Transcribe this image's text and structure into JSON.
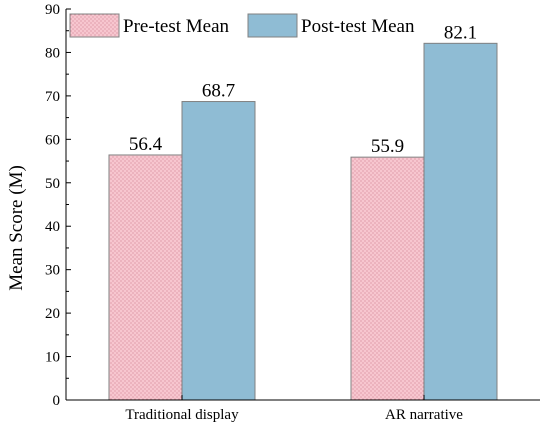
{
  "chart_data": {
    "type": "bar",
    "title": "",
    "xlabel": "",
    "ylabel": "Mean Score (M)",
    "ylim": [
      0,
      90
    ],
    "yticks": [
      0,
      10,
      20,
      30,
      40,
      50,
      60,
      70,
      80,
      90
    ],
    "categories": [
      "Traditional display",
      "AR narrative"
    ],
    "series": [
      {
        "name": "Pre-test Mean",
        "values": [
          56.4,
          55.9
        ],
        "labels": [
          "56.4",
          "55.9"
        ],
        "color": "#f7c6cf",
        "pattern": "dots"
      },
      {
        "name": "Post-test Mean",
        "values": [
          68.7,
          82.1
        ],
        "labels": [
          "68.7",
          "82.1"
        ],
        "color": "#8fbcd4",
        "pattern": "none"
      }
    ],
    "legend": "top-left",
    "grid": false
  }
}
